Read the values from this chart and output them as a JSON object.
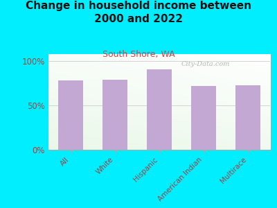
{
  "title": "Change in household income between\n2000 and 2022",
  "subtitle": "South Shore, WA",
  "categories": [
    "All",
    "White",
    "Hispanic",
    "American Indian",
    "Multirace"
  ],
  "values": [
    78,
    79,
    91,
    72,
    73
  ],
  "bar_color": "#c4a8d4",
  "background_outer": "#00eeff",
  "title_fontsize": 11,
  "subtitle_fontsize": 9,
  "subtitle_color": "#cc4444",
  "tick_label_color": "#994444",
  "ytick_color": "#994444",
  "ytick_labels": [
    "0%",
    "50%",
    "100%"
  ],
  "ytick_values": [
    0,
    50,
    100
  ],
  "ylim": [
    0,
    108
  ],
  "watermark": "City-Data.com",
  "figsize": [
    4.0,
    3.0
  ],
  "dpi": 100
}
